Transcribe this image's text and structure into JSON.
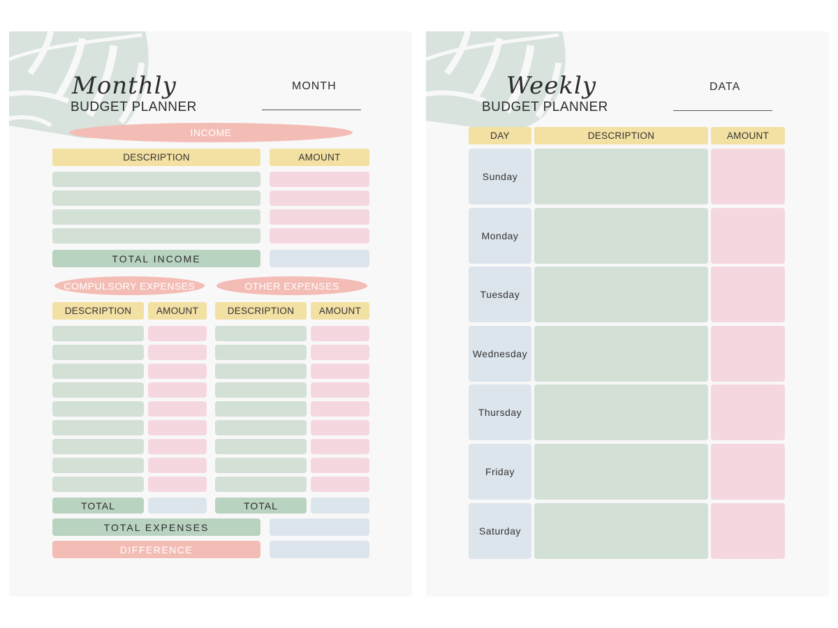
{
  "monthly": {
    "title_script": "Monthly",
    "title_sub": "BUDGET PLANNER",
    "month_label": "MONTH",
    "income": {
      "heading": "INCOME",
      "description_header": "DESCRIPTION",
      "amount_header": "AMOUNT",
      "total_label": "TOTAL  INCOME"
    },
    "compulsory": {
      "heading": "COMPULSORY EXPENSES",
      "description_header": "DESCRIPTION",
      "amount_header": "AMOUNT",
      "total_label": "TOTAL"
    },
    "other": {
      "heading": "OTHER EXPENSES",
      "description_header": "DESCRIPTION",
      "amount_header": "AMOUNT",
      "total_label": "TOTAL"
    },
    "total_expenses_label": "TOTAL  EXPENSES",
    "difference_label": "DIFFERENCE"
  },
  "weekly": {
    "title_script": "Weekly",
    "title_sub": "BUDGET PLANNER",
    "data_label": "DATA",
    "day_header": "DAY",
    "description_header": "DESCRIPTION",
    "amount_header": "AMOUNT",
    "days": [
      "Sunday",
      "Monday",
      "Tuesday",
      "Wednesday",
      "Thursday",
      "Friday",
      "Saturday"
    ]
  },
  "colors": {
    "yellow": "#f3e0a3",
    "green": "#d2e0d6",
    "dark_green": "#b9d3c1",
    "pink": "#f5d8df",
    "salmon": "#f3bdb6",
    "blue": "#dde5ec",
    "leaf": "#d7e3dc"
  },
  "icons": [
    "monstera-leaf-icon"
  ]
}
